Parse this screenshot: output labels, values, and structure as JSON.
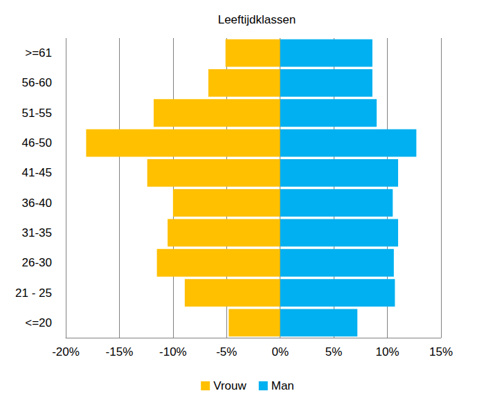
{
  "chart_data": {
    "type": "bar",
    "orientation": "horizontal",
    "stacked": true,
    "ylabel": "Leeftijdklassen",
    "categories": [
      "<=20",
      "21 - 25",
      "26-30",
      "31-35",
      "36-40",
      "41-45",
      "46-50",
      "51-55",
      "56-60",
      ">=61"
    ],
    "series": [
      {
        "name": "Vrouw",
        "color": "#FFC000",
        "values": [
          -4.8,
          -8.9,
          -11.5,
          -10.5,
          -10.0,
          -12.4,
          -18.1,
          -11.8,
          -6.7,
          -5.1
        ]
      },
      {
        "name": "Man",
        "color": "#00B0F0",
        "values": [
          7.2,
          10.7,
          10.6,
          11.0,
          10.5,
          11.0,
          12.7,
          9.0,
          8.6,
          8.6
        ]
      }
    ],
    "xlim": [
      -20,
      15
    ],
    "xticks": [
      {
        "value": -20,
        "label": "-20%"
      },
      {
        "value": -15,
        "label": "-15%"
      },
      {
        "value": -10,
        "label": "-10%"
      },
      {
        "value": -5,
        "label": "-5%"
      },
      {
        "value": 0,
        "label": "0%"
      },
      {
        "value": 5,
        "label": "5%"
      },
      {
        "value": 10,
        "label": "10%"
      },
      {
        "value": 15,
        "label": "15%"
      }
    ],
    "grid": true,
    "legend": "bottom"
  }
}
